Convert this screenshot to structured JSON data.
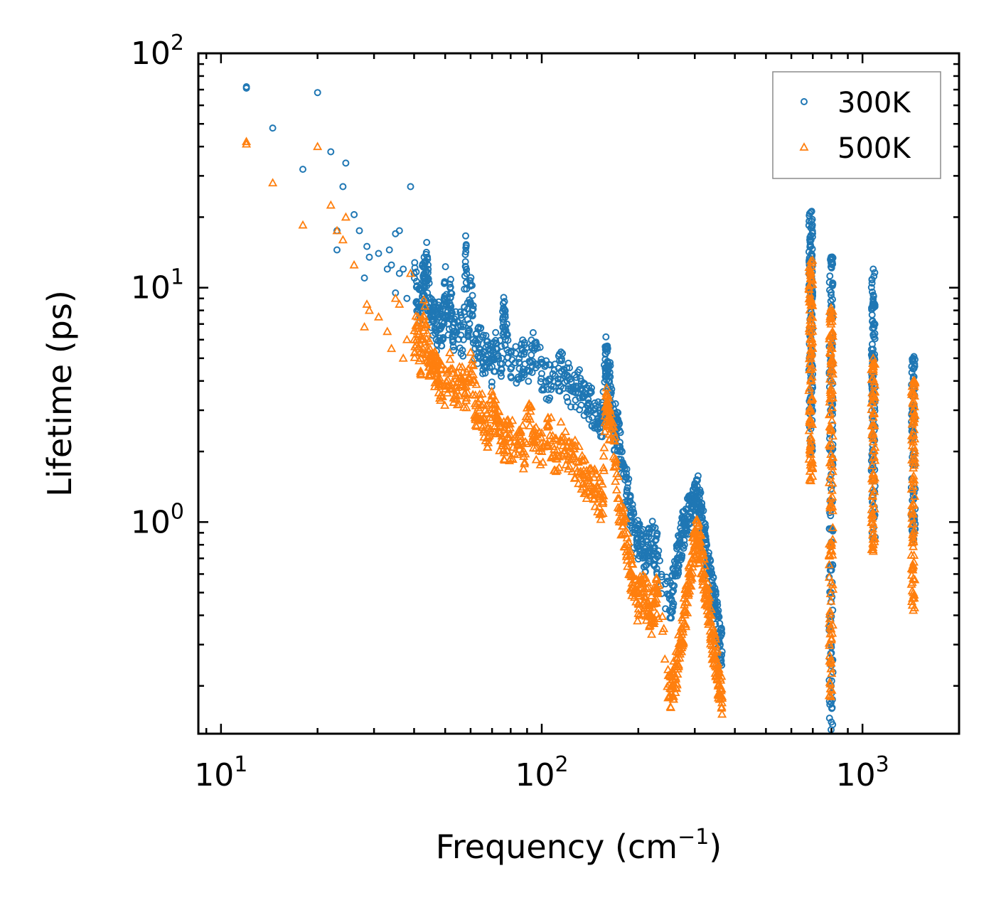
{
  "chart_data": {
    "type": "scatter",
    "xscale": "log",
    "yscale": "log",
    "xlim": [
      8.5,
      2000
    ],
    "ylim": [
      0.125,
      100
    ],
    "x_ticks": [
      {
        "value": 10,
        "base": "10",
        "exp": "1"
      },
      {
        "value": 100,
        "base": "10",
        "exp": "2"
      },
      {
        "value": 1000,
        "base": "10",
        "exp": "3"
      }
    ],
    "y_ticks": [
      {
        "value": 1,
        "base": "10",
        "exp": "0"
      },
      {
        "value": 10,
        "base": "10",
        "exp": "1"
      },
      {
        "value": 100,
        "base": "10",
        "exp": "2"
      }
    ],
    "xlabel": {
      "text": "Frequency (cm",
      "sup": "−1",
      "tail": ")"
    },
    "ylabel": "Lifetime (ps)",
    "legend": {
      "placement": "top-right"
    },
    "series": [
      {
        "name": "300K",
        "marker": "circle-open",
        "color": "#1f77b4",
        "points": [
          [
            12,
            72
          ],
          [
            12,
            71
          ],
          [
            14.5,
            48
          ],
          [
            18,
            32
          ],
          [
            20,
            68
          ],
          [
            22,
            38
          ],
          [
            23,
            17.5
          ],
          [
            23,
            14.5
          ],
          [
            24,
            27
          ],
          [
            24.5,
            34
          ],
          [
            26,
            20.5
          ],
          [
            27,
            17.5
          ],
          [
            28,
            11
          ],
          [
            28.5,
            15
          ],
          [
            29,
            13.5
          ],
          [
            31,
            14
          ],
          [
            33,
            12
          ],
          [
            33.5,
            14.5
          ],
          [
            34,
            12.5
          ],
          [
            35,
            9.5
          ],
          [
            35,
            17
          ],
          [
            36,
            17.5
          ],
          [
            36,
            11.5
          ],
          [
            37,
            12
          ],
          [
            38,
            9
          ],
          [
            39,
            27
          ],
          [
            40,
            11.5
          ],
          [
            41,
            8.5
          ],
          [
            42,
            8.5
          ],
          [
            43,
            13.5
          ],
          [
            43,
            10
          ],
          [
            44,
            13.5
          ],
          [
            44,
            9.5
          ],
          [
            45,
            8
          ],
          [
            46,
            7.5
          ],
          [
            47,
            6.5
          ],
          [
            48,
            7.5
          ],
          [
            49,
            6
          ],
          [
            50,
            10.5
          ],
          [
            51,
            7
          ],
          [
            52,
            9.5
          ],
          [
            53,
            6.5
          ],
          [
            55,
            6.8
          ],
          [
            57,
            6
          ],
          [
            58,
            14.8
          ],
          [
            59,
            6.5
          ],
          [
            60,
            10.3
          ],
          [
            62,
            5.5
          ],
          [
            64,
            6
          ],
          [
            66,
            5
          ],
          [
            68,
            5.2
          ],
          [
            70,
            4.6
          ],
          [
            72,
            5.5
          ],
          [
            75,
            5
          ],
          [
            76,
            8.2
          ],
          [
            77,
            6.8
          ],
          [
            80,
            4.5
          ],
          [
            85,
            4.8
          ],
          [
            88,
            5.2
          ],
          [
            92,
            4.8
          ],
          [
            95,
            5.8
          ],
          [
            100,
            4.3
          ],
          [
            105,
            4
          ],
          [
            110,
            4.2
          ],
          [
            115,
            4.4
          ],
          [
            120,
            4
          ],
          [
            125,
            3.6
          ],
          [
            130,
            3.8
          ],
          [
            135,
            3.4
          ],
          [
            140,
            3.2
          ],
          [
            145,
            3
          ],
          [
            150,
            2.7
          ],
          [
            155,
            2.8
          ],
          [
            158,
            5.2
          ],
          [
            160,
            4.8
          ],
          [
            162,
            4.2
          ],
          [
            164,
            3.8
          ],
          [
            168,
            2.4
          ],
          [
            170,
            2.9
          ],
          [
            172,
            2.5
          ],
          [
            175,
            2.1
          ],
          [
            178,
            1.8
          ],
          [
            180,
            1.6
          ],
          [
            185,
            1.4
          ],
          [
            190,
            1.1
          ],
          [
            195,
            0.9
          ],
          [
            200,
            0.85
          ],
          [
            205,
            0.8
          ],
          [
            210,
            0.75
          ],
          [
            215,
            0.8
          ],
          [
            220,
            0.85
          ],
          [
            225,
            0.78
          ],
          [
            230,
            0.72
          ],
          [
            250,
            0.42
          ],
          [
            255,
            0.5
          ],
          [
            260,
            0.6
          ],
          [
            265,
            0.7
          ],
          [
            270,
            0.8
          ],
          [
            275,
            0.9
          ],
          [
            280,
            1.0
          ],
          [
            285,
            1.05
          ],
          [
            290,
            1.1
          ],
          [
            295,
            1.15
          ],
          [
            300,
            1.25
          ],
          [
            305,
            1.35
          ],
          [
            310,
            1.2
          ],
          [
            315,
            1.05
          ],
          [
            320,
            0.9
          ],
          [
            325,
            0.8
          ],
          [
            330,
            0.7
          ],
          [
            335,
            0.6
          ],
          [
            340,
            0.5
          ],
          [
            345,
            0.45
          ],
          [
            350,
            0.4
          ],
          [
            355,
            0.35
          ],
          [
            360,
            0.3
          ],
          [
            365,
            0.28
          ],
          [
            690,
            21
          ],
          [
            690,
            18
          ],
          [
            690,
            15
          ],
          [
            690,
            13
          ],
          [
            690,
            11
          ],
          [
            690,
            9.5
          ],
          [
            690,
            8
          ],
          [
            690,
            6.5
          ],
          [
            690,
            5
          ],
          [
            690,
            4
          ],
          [
            690,
            3.2
          ],
          [
            690,
            2.5
          ],
          [
            690,
            2
          ],
          [
            798,
            13.5
          ],
          [
            798,
            12.8
          ],
          [
            798,
            9.3
          ],
          [
            798,
            7.4
          ],
          [
            798,
            5
          ],
          [
            798,
            4
          ],
          [
            798,
            3
          ],
          [
            798,
            2
          ],
          [
            798,
            1.2
          ],
          [
            798,
            0.8
          ],
          [
            798,
            0.5
          ],
          [
            798,
            0.3
          ],
          [
            798,
            0.2
          ],
          [
            798,
            0.13
          ],
          [
            1080,
            12
          ],
          [
            1080,
            8.7
          ],
          [
            1080,
            8.2
          ],
          [
            1080,
            6.3
          ],
          [
            1080,
            5.1
          ],
          [
            1080,
            4.2
          ],
          [
            1080,
            3.5
          ],
          [
            1080,
            2.7
          ],
          [
            1080,
            2
          ],
          [
            1080,
            1.5
          ],
          [
            1080,
            1.1
          ],
          [
            1080,
            0.85
          ],
          [
            1440,
            5
          ],
          [
            1440,
            4.5
          ],
          [
            1440,
            3.8
          ],
          [
            1440,
            3
          ],
          [
            1440,
            2.4
          ],
          [
            1440,
            1.8
          ],
          [
            1440,
            1.3
          ],
          [
            1440,
            1
          ],
          [
            1440,
            0.85
          ]
        ]
      },
      {
        "name": "500K",
        "marker": "triangle-open",
        "color": "#ff7f0e",
        "points": [
          [
            12,
            42
          ],
          [
            12,
            41
          ],
          [
            14.5,
            28
          ],
          [
            18,
            18.5
          ],
          [
            20,
            40
          ],
          [
            22,
            22.5
          ],
          [
            23,
            17.5
          ],
          [
            24,
            16
          ],
          [
            24.5,
            20
          ],
          [
            26,
            12.5
          ],
          [
            28,
            6.8
          ],
          [
            28.5,
            8.5
          ],
          [
            29,
            8
          ],
          [
            31,
            7.5
          ],
          [
            33,
            6.5
          ],
          [
            34,
            5.5
          ],
          [
            35,
            9
          ],
          [
            36,
            8.5
          ],
          [
            37,
            5
          ],
          [
            38,
            6
          ],
          [
            39,
            11.5
          ],
          [
            40,
            6
          ],
          [
            41,
            6.5
          ],
          [
            42,
            5
          ],
          [
            43,
            7.5
          ],
          [
            44,
            5.5
          ],
          [
            45,
            4.8
          ],
          [
            46,
            4.5
          ],
          [
            47,
            4.2
          ],
          [
            48,
            4
          ],
          [
            50,
            3.8
          ],
          [
            52,
            4.5
          ],
          [
            54,
            3.5
          ],
          [
            56,
            4.2
          ],
          [
            58,
            3.3
          ],
          [
            60,
            5.3
          ],
          [
            62,
            3.2
          ],
          [
            64,
            3
          ],
          [
            66,
            2.8
          ],
          [
            68,
            2.5
          ],
          [
            70,
            3.2
          ],
          [
            72,
            2.7
          ],
          [
            74,
            2.4
          ],
          [
            76,
            2.2
          ],
          [
            78,
            2.3
          ],
          [
            80,
            2.2
          ],
          [
            85,
            2.4
          ],
          [
            88,
            2
          ],
          [
            92,
            3.1
          ],
          [
            95,
            2.2
          ],
          [
            100,
            2.0
          ],
          [
            105,
            2.6
          ],
          [
            110,
            1.9
          ],
          [
            115,
            2.2
          ],
          [
            120,
            2.1
          ],
          [
            125,
            1.9
          ],
          [
            130,
            1.8
          ],
          [
            135,
            1.6
          ],
          [
            140,
            1.5
          ],
          [
            145,
            1.4
          ],
          [
            150,
            1.3
          ],
          [
            155,
            1.2
          ],
          [
            158,
            3.1
          ],
          [
            160,
            3.1
          ],
          [
            162,
            2.7
          ],
          [
            165,
            2.5
          ],
          [
            170,
            1.8
          ],
          [
            175,
            1.1
          ],
          [
            180,
            1.0
          ],
          [
            185,
            0.8
          ],
          [
            190,
            0.6
          ],
          [
            195,
            0.5
          ],
          [
            200,
            0.45
          ],
          [
            205,
            0.5
          ],
          [
            210,
            0.48
          ],
          [
            215,
            0.45
          ],
          [
            220,
            0.4
          ],
          [
            225,
            0.45
          ],
          [
            230,
            0.5
          ],
          [
            250,
            0.18
          ],
          [
            255,
            0.2
          ],
          [
            260,
            0.22
          ],
          [
            265,
            0.25
          ],
          [
            270,
            0.3
          ],
          [
            275,
            0.35
          ],
          [
            280,
            0.42
          ],
          [
            285,
            0.5
          ],
          [
            290,
            0.6
          ],
          [
            295,
            0.7
          ],
          [
            300,
            0.8
          ],
          [
            305,
            0.85
          ],
          [
            310,
            0.8
          ],
          [
            315,
            0.72
          ],
          [
            320,
            0.6
          ],
          [
            325,
            0.5
          ],
          [
            330,
            0.45
          ],
          [
            335,
            0.38
          ],
          [
            340,
            0.32
          ],
          [
            345,
            0.28
          ],
          [
            350,
            0.25
          ],
          [
            355,
            0.22
          ],
          [
            360,
            0.2
          ],
          [
            365,
            0.18
          ],
          [
            690,
            13
          ],
          [
            690,
            11
          ],
          [
            690,
            9
          ],
          [
            690,
            7.5
          ],
          [
            690,
            6
          ],
          [
            690,
            5
          ],
          [
            690,
            4
          ],
          [
            690,
            3
          ],
          [
            690,
            2.3
          ],
          [
            690,
            1.8
          ],
          [
            690,
            1.5
          ],
          [
            798,
            8.2
          ],
          [
            798,
            7
          ],
          [
            798,
            5.5
          ],
          [
            798,
            4.5
          ],
          [
            798,
            3.5
          ],
          [
            798,
            2.5
          ],
          [
            798,
            1.8
          ],
          [
            798,
            1.2
          ],
          [
            798,
            0.8
          ],
          [
            798,
            0.55
          ],
          [
            798,
            0.35
          ],
          [
            798,
            0.25
          ],
          [
            798,
            0.18
          ],
          [
            1080,
            5
          ],
          [
            1080,
            4.5
          ],
          [
            1080,
            3.5
          ],
          [
            1080,
            2.8
          ],
          [
            1080,
            2.2
          ],
          [
            1080,
            1.6
          ],
          [
            1080,
            1.2
          ],
          [
            1080,
            0.9
          ],
          [
            1080,
            0.75
          ],
          [
            1440,
            4
          ],
          [
            1440,
            3.5
          ],
          [
            1440,
            2.8
          ],
          [
            1440,
            2.2
          ],
          [
            1440,
            1.7
          ],
          [
            1440,
            1.2
          ],
          [
            1440,
            0.9
          ],
          [
            1440,
            0.65
          ],
          [
            1440,
            0.5
          ],
          [
            1440,
            0.42
          ]
        ]
      }
    ]
  }
}
